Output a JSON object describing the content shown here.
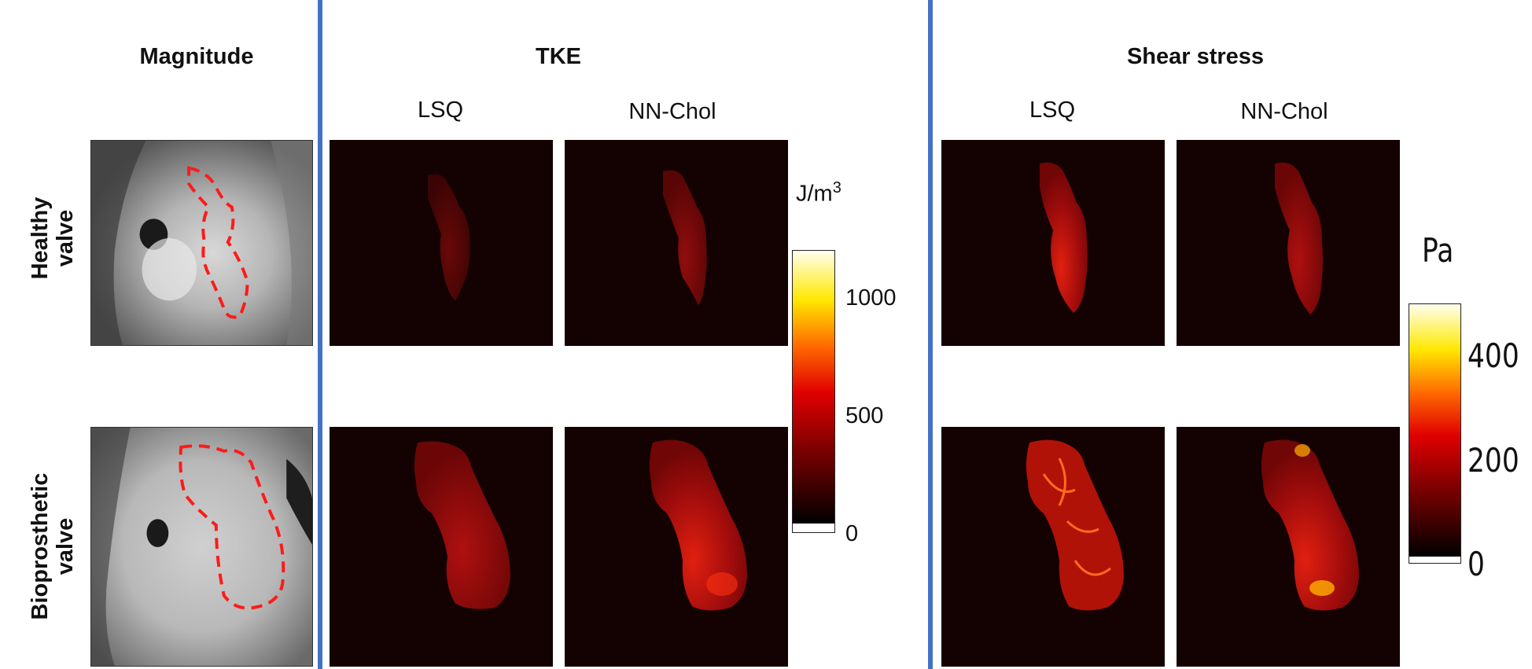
{
  "headers": {
    "magnitude": "Magnitude",
    "tke": "TKE",
    "shear": "Shear stress"
  },
  "subheaders": {
    "tke_lsq": "LSQ",
    "tke_nnchol": "NN-Chol",
    "shear_lsq": "LSQ",
    "shear_nnchol": "NN-Chol"
  },
  "row_labels": {
    "healthy": [
      "Healthy",
      "valve"
    ],
    "bioprosthetic": [
      "Bioprosthetic",
      "valve"
    ]
  },
  "colorbar_tke": {
    "unit": "J/m",
    "unit_sup": "3",
    "ticks": [
      "1000",
      "500",
      "0"
    ],
    "range": [
      0,
      1200
    ]
  },
  "colorbar_shear": {
    "unit": "Pa",
    "ticks": [
      "400",
      "200",
      "0"
    ],
    "range": [
      0,
      500
    ]
  },
  "colors": {
    "divider": "#4472c4",
    "background_map": "#140202",
    "roi_outline": "#ff1a1a"
  }
}
